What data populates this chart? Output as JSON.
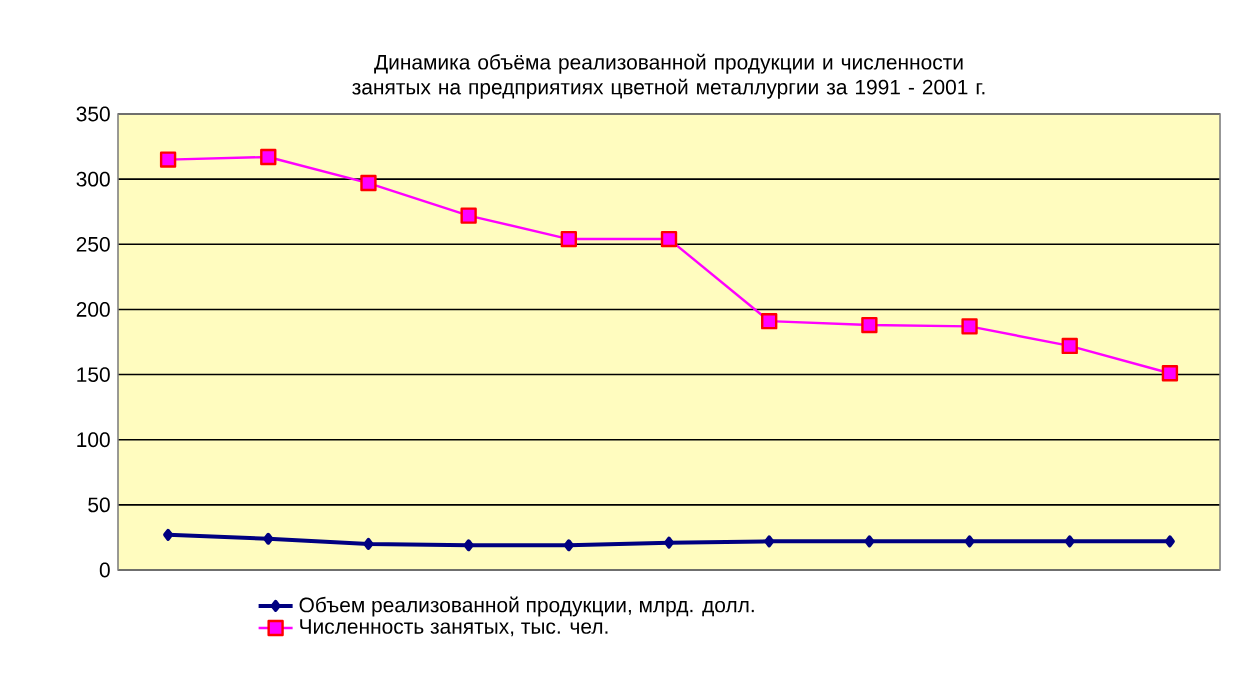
{
  "chart_data": {
    "type": "line",
    "title": "Динамика объёма реализованной продукции и численности занятых на предприятиях цветной металлургии за 1991 - 2001 г.",
    "categories": [
      null,
      null,
      null,
      null,
      null,
      null,
      null,
      null,
      null,
      null,
      null
    ],
    "series": [
      {
        "name": "Объем реализованной продукции, млрд. долл.",
        "color": "#000080",
        "marker": "diamond",
        "values": [
          27,
          24,
          20,
          19,
          19,
          21,
          22,
          22,
          22,
          22,
          22
        ]
      },
      {
        "name": "Численность занятых, тыс. чел.",
        "color": "#ff00ff",
        "marker": "square",
        "values": [
          315,
          317,
          297,
          272,
          254,
          254,
          191,
          188,
          187,
          172,
          151
        ]
      }
    ],
    "ylim": [
      0,
      350
    ],
    "yticks": [
      0,
      50,
      100,
      150,
      200,
      250,
      300,
      350
    ],
    "grid": "y",
    "legend": "bottom",
    "line_style": "solid"
  }
}
